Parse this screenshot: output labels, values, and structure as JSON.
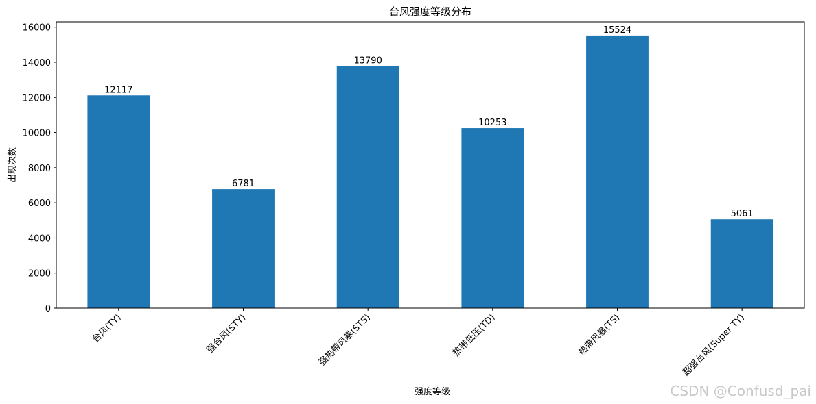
{
  "chart_data": {
    "type": "bar",
    "title": "台风强度等级分布",
    "x_label": "强度等级",
    "y_label": "出现次数",
    "categories": [
      "台风(TY)",
      "强台风(STY)",
      "强热带风暴(STS)",
      "热带低压(TD)",
      "热带风暴(TS)",
      "超强台风(Super TY)"
    ],
    "values": [
      12117,
      6781,
      13790,
      10253,
      15524,
      5061
    ],
    "color": "#1f77b4",
    "ylim": [
      0,
      16300
    ],
    "yticks": [
      0,
      2000,
      4000,
      6000,
      8000,
      10000,
      12000,
      14000,
      16000
    ],
    "grid": false
  },
  "watermark": "CSDN @Confusd_pai"
}
